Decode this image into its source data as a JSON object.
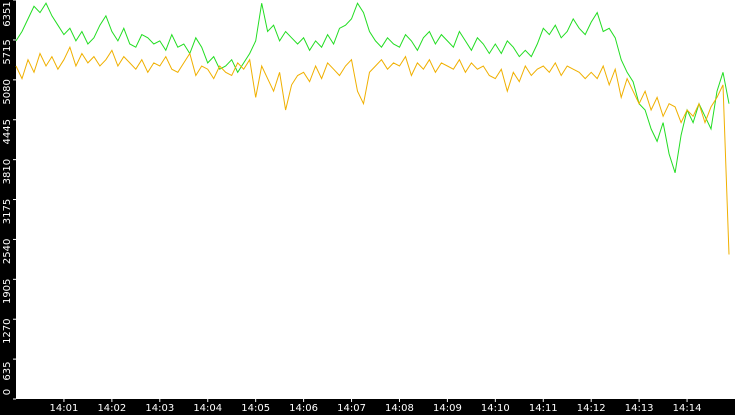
{
  "chart_data": {
    "type": "line",
    "categories": [
      null,
      null,
      null,
      null,
      null,
      null,
      null,
      null,
      "14:01",
      null,
      null,
      null,
      null,
      null,
      null,
      null,
      "14:02",
      null,
      null,
      null,
      null,
      null,
      null,
      null,
      "14:03",
      null,
      null,
      null,
      null,
      null,
      null,
      null,
      "14:04",
      null,
      null,
      null,
      null,
      null,
      null,
      null,
      "14:05",
      null,
      null,
      null,
      null,
      null,
      null,
      null,
      "14:06",
      null,
      null,
      null,
      null,
      null,
      null,
      null,
      "14:07",
      null,
      null,
      null,
      null,
      null,
      null,
      null,
      "14:08",
      null,
      null,
      null,
      null,
      null,
      null,
      null,
      "14:09",
      null,
      null,
      null,
      null,
      null,
      null,
      null,
      "14:10",
      null,
      null,
      null,
      null,
      null,
      null,
      null,
      "14:11",
      null,
      null,
      null,
      null,
      null,
      null,
      null,
      "14:12",
      null,
      null,
      null,
      null,
      null,
      null,
      null,
      "14:13",
      null,
      null,
      null,
      null,
      null,
      null,
      null,
      "14:14",
      null,
      null,
      null,
      null,
      null,
      null,
      null
    ],
    "series": [
      {
        "color": "#22dd22",
        "values": [
          5700,
          5850,
          6050,
          6250,
          6150,
          6300,
          6100,
          5950,
          5800,
          5900,
          5700,
          5850,
          5650,
          5750,
          5950,
          6100,
          5850,
          5700,
          5900,
          5650,
          5600,
          5800,
          5750,
          5650,
          5700,
          5550,
          5800,
          5600,
          5650,
          5500,
          5750,
          5600,
          5350,
          5450,
          5250,
          5300,
          5400,
          5200,
          5350,
          5500,
          5700,
          6300,
          5850,
          5950,
          5700,
          5850,
          5750,
          5650,
          5750,
          5550,
          5700,
          5600,
          5800,
          5650,
          5900,
          5950,
          6050,
          6300,
          6150,
          5850,
          5700,
          5600,
          5750,
          5650,
          5600,
          5800,
          5700,
          5550,
          5750,
          5850,
          5650,
          5800,
          5700,
          5600,
          5850,
          5700,
          5550,
          5750,
          5650,
          5500,
          5650,
          5500,
          5700,
          5600,
          5450,
          5550,
          5450,
          5650,
          5900,
          5800,
          5950,
          5750,
          5850,
          6050,
          5900,
          5800,
          6000,
          6150,
          5850,
          5900,
          5750,
          5400,
          5200,
          5050,
          4700,
          4600,
          4300,
          4100,
          4400,
          3900,
          3600,
          4200,
          4600,
          4400,
          4700,
          4500,
          4300,
          4900,
          5200,
          4700
        ]
      },
      {
        "color": "#f0b000",
        "values": [
          5300,
          5100,
          5400,
          5200,
          5500,
          5300,
          5450,
          5250,
          5400,
          5600,
          5300,
          5500,
          5350,
          5450,
          5300,
          5400,
          5550,
          5300,
          5450,
          5350,
          5250,
          5400,
          5200,
          5350,
          5300,
          5450,
          5250,
          5200,
          5350,
          5500,
          5150,
          5300,
          5250,
          5100,
          5300,
          5200,
          5150,
          5350,
          5250,
          5400,
          4800,
          5300,
          5100,
          4900,
          5200,
          4600,
          5000,
          5150,
          5200,
          5050,
          5300,
          5100,
          5350,
          5250,
          5150,
          5300,
          5400,
          4900,
          4700,
          5200,
          5300,
          5400,
          5250,
          5350,
          5300,
          5450,
          5150,
          5350,
          5250,
          5400,
          5200,
          5350,
          5300,
          5250,
          5400,
          5200,
          5350,
          5250,
          5300,
          5150,
          5100,
          5250,
          4900,
          5200,
          5050,
          5300,
          5150,
          5250,
          5300,
          5200,
          5350,
          5150,
          5300,
          5250,
          5200,
          5100,
          5200,
          5100,
          5300,
          5000,
          5250,
          4800,
          5100,
          4900,
          4700,
          4900,
          4600,
          4800,
          4500,
          4700,
          4650,
          4400,
          4600,
          4500,
          4700,
          4400,
          4650,
          4800,
          5000,
          2300
        ]
      }
    ],
    "ylim": [
      0,
      6351
    ],
    "yticks": [
      0,
      635,
      1270,
      1905,
      2540,
      3175,
      3810,
      4445,
      5080,
      5715,
      6351
    ]
  }
}
